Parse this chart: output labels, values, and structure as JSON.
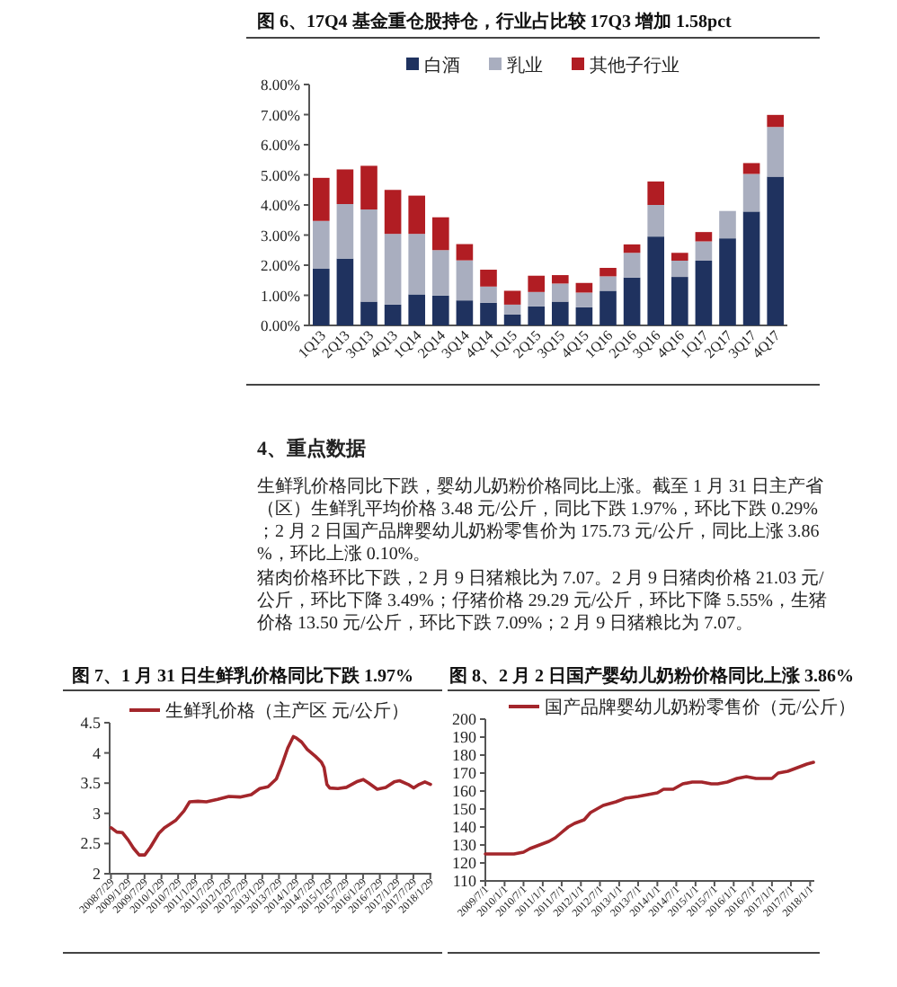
{
  "chart_data": [
    {
      "type": "bar",
      "stacked": true,
      "title": "图 6、17Q4 基金重仓股持仓，行业占比较 17Q3 增加 1.58pct",
      "legend": "top",
      "categories": [
        "1Q13",
        "2Q13",
        "3Q13",
        "4Q13",
        "1Q14",
        "2Q14",
        "3Q14",
        "4Q14",
        "1Q15",
        "2Q15",
        "3Q15",
        "4Q15",
        "1Q16",
        "2Q16",
        "3Q16",
        "4Q16",
        "1Q17",
        "2Q17",
        "3Q17",
        "4Q17"
      ],
      "series": [
        {
          "name": "白酒",
          "color": "#1f325f",
          "values": [
            1.88,
            2.22,
            0.79,
            0.69,
            1.03,
            0.99,
            0.83,
            0.75,
            0.36,
            0.63,
            0.79,
            0.6,
            1.15,
            1.59,
            2.95,
            1.61,
            2.15,
            2.89,
            3.78,
            4.94
          ]
        },
        {
          "name": "乳业",
          "color": "#a9aebf",
          "values": [
            1.59,
            1.81,
            3.06,
            2.35,
            2.01,
            1.51,
            1.33,
            0.54,
            0.33,
            0.48,
            0.6,
            0.49,
            0.48,
            0.82,
            1.05,
            0.54,
            0.64,
            0.91,
            1.25,
            1.65
          ]
        },
        {
          "name": "其他子行业",
          "color": "#b11d23",
          "values": [
            1.43,
            1.15,
            1.45,
            1.46,
            1.27,
            1.09,
            0.54,
            0.56,
            0.46,
            0.54,
            0.28,
            0.32,
            0.28,
            0.28,
            0.78,
            0.26,
            0.31,
            null,
            0.36,
            0.4
          ]
        }
      ],
      "ylim": [
        0,
        8
      ],
      "yticks": [
        {
          "value": 0,
          "label": "0.00%"
        },
        {
          "value": 1,
          "label": "1.00%"
        },
        {
          "value": 2,
          "label": "2.00%"
        },
        {
          "value": 3,
          "label": "3.00%"
        },
        {
          "value": 4,
          "label": "4.00%"
        },
        {
          "value": 5,
          "label": "5.00%"
        },
        {
          "value": 6,
          "label": "6.00%"
        },
        {
          "value": 7,
          "label": "7.00%"
        },
        {
          "value": 8,
          "label": "8.00%"
        }
      ],
      "annotations": [
        "4、重点数据",
        "生鲜乳价格同比下跌，婴幼儿奶粉价格同比上涨。截至 1 月 31 日主产省（区）生鲜乳平均价格 3.48 元/公斤，同比下跌 1.97%，环比下跌 0.29%；2 月 2 日国产品牌婴幼儿奶粉零售价为 175.73 元/公斤，同比上涨 3.86%，环比上涨 0.10%。",
        "猪肉价格环比下跌，2 月 9 日猪粮比为 7.07。2 月 9 日猪肉价格 21.03 元/公斤，环比下降 3.49%；仔猪价格 29.29 元/公斤，环比下降 5.55%，生猪价格 13.50 元/公斤，环比下跌 7.09%；2 月 9 日猪粮比为 7.07。"
      ]
    },
    {
      "type": "line",
      "title": "图 7、1 月 31 日生鲜乳价格同比下跌 1.97%",
      "legend": "top",
      "x": [
        "2008-08",
        "2008-10",
        "2008-12",
        "2009-02",
        "2009-04",
        "2009-06",
        "2009-08",
        "2009-10",
        "2010-01",
        "2010-03",
        "2010-07",
        "2010-10",
        "2010-12",
        "2011-03",
        "2011-06",
        "2011-10",
        "2012-02",
        "2012-06",
        "2012-10",
        "2013-01",
        "2013-04",
        "2013-07",
        "2013-09",
        "2013-11",
        "2014-01",
        "2014-02",
        "2014-04",
        "2014-06",
        "2014-09",
        "2014-11",
        "2014-12",
        "2015-01",
        "2015-02",
        "2015-05",
        "2015-08",
        "2015-12",
        "2016-02",
        "2016-04",
        "2016-07",
        "2016-10",
        "2017-01",
        "2017-03",
        "2017-06",
        "2017-08",
        "2017-10",
        "2017-12",
        "2018-01-31"
      ],
      "series": [
        {
          "name": "生鲜乳价格（主产区 元/公斤）",
          "color": "#a3262b",
          "values": [
            2.76,
            2.69,
            2.68,
            2.56,
            2.42,
            2.31,
            2.31,
            2.44,
            2.67,
            2.76,
            2.88,
            3.04,
            3.19,
            3.2,
            3.19,
            3.23,
            3.28,
            3.27,
            3.31,
            3.41,
            3.44,
            3.57,
            3.81,
            4.08,
            4.27,
            4.25,
            4.18,
            4.06,
            3.94,
            3.85,
            3.76,
            3.48,
            3.42,
            3.41,
            3.43,
            3.53,
            3.56,
            3.5,
            3.4,
            3.43,
            3.52,
            3.54,
            3.48,
            3.42,
            3.48,
            3.52,
            3.48
          ]
        }
      ],
      "ylim": [
        2,
        4.5
      ],
      "yticks": [
        2,
        2.5,
        3,
        3.5,
        4,
        4.5
      ],
      "xlim": [
        "2008-07-15",
        "2018-02-10"
      ],
      "xticks": [
        {
          "value": "2008-07-29",
          "label": "2008/7/29"
        },
        {
          "value": "2009-01-29",
          "label": "2009/1/29"
        },
        {
          "value": "2009-07-29",
          "label": "2009/7/29"
        },
        {
          "value": "2010-01-29",
          "label": "2010/1/29"
        },
        {
          "value": "2010-07-29",
          "label": "2010/7/29"
        },
        {
          "value": "2011-01-29",
          "label": "2011/1/29"
        },
        {
          "value": "2011-07-29",
          "label": "2011/7/29"
        },
        {
          "value": "2012-01-29",
          "label": "2012/1/29"
        },
        {
          "value": "2012-07-29",
          "label": "2012/7/29"
        },
        {
          "value": "2013-01-29",
          "label": "2013/1/29"
        },
        {
          "value": "2013-07-29",
          "label": "2013/7/29"
        },
        {
          "value": "2014-01-29",
          "label": "2014/1/29"
        },
        {
          "value": "2014-07-29",
          "label": "2014/7/29"
        },
        {
          "value": "2015-01-29",
          "label": "2015/1/29"
        },
        {
          "value": "2015-07-29",
          "label": "2015/7/29"
        },
        {
          "value": "2016-01-29",
          "label": "2016/1/29"
        },
        {
          "value": "2016-07-29",
          "label": "2016/7/29"
        },
        {
          "value": "2017-01-29",
          "label": "2017/1/29"
        },
        {
          "value": "2017-07-29",
          "label": "2017/7/29"
        },
        {
          "value": "2018-01-29",
          "label": "2018/1/29"
        }
      ]
    },
    {
      "type": "line",
      "title": "图 8、2 月 2 日国产婴幼儿奶粉价格同比上涨 3.86%",
      "legend": "top",
      "x": [
        "2009-07",
        "2009-12",
        "2010-04",
        "2010-07",
        "2010-09",
        "2010-12",
        "2011-03",
        "2011-05",
        "2011-07",
        "2011-09",
        "2011-11",
        "2012-02",
        "2012-04",
        "2012-06",
        "2012-08",
        "2012-12",
        "2013-03",
        "2013-07",
        "2013-10",
        "2014-01",
        "2014-03",
        "2014-06",
        "2014-09",
        "2014-12",
        "2015-03",
        "2015-06",
        "2015-08",
        "2015-11",
        "2016-02",
        "2016-05",
        "2016-08",
        "2017-01",
        "2017-03",
        "2017-06",
        "2017-09",
        "2017-12",
        "2018-02-02"
      ],
      "series": [
        {
          "name": "国产品牌婴幼儿奶粉零售价（元/公斤）",
          "color": "#a3262b",
          "values": [
            125,
            125,
            125,
            126,
            128,
            130,
            132,
            134,
            137,
            140,
            142,
            144,
            148,
            150,
            152,
            154,
            156,
            157,
            158,
            159,
            161,
            161,
            164,
            165,
            165,
            164,
            164,
            165,
            167,
            168,
            167,
            167,
            170,
            171,
            173,
            175,
            176
          ]
        }
      ],
      "ylim": [
        110,
        200
      ],
      "yticks": [
        110,
        120,
        130,
        140,
        150,
        160,
        170,
        180,
        190,
        200
      ],
      "xlim": [
        "2009-07-01",
        "2018-02-10"
      ],
      "xticks": [
        {
          "value": "2009-07-01",
          "label": "2009/7/1"
        },
        {
          "value": "2010-01-01",
          "label": "2010/1/1"
        },
        {
          "value": "2010-07-01",
          "label": "2010/7/1"
        },
        {
          "value": "2011-01-01",
          "label": "2011/1/1"
        },
        {
          "value": "2011-07-01",
          "label": "2011/7/1"
        },
        {
          "value": "2012-01-01",
          "label": "2012/1/1"
        },
        {
          "value": "2012-07-01",
          "label": "2012/7/1"
        },
        {
          "value": "2013-01-01",
          "label": "2013/1/1"
        },
        {
          "value": "2013-07-01",
          "label": "2013/7/1"
        },
        {
          "value": "2014-01-01",
          "label": "2014/1/1"
        },
        {
          "value": "2014-07-01",
          "label": "2014/7/1"
        },
        {
          "value": "2015-01-01",
          "label": "2015/1/1"
        },
        {
          "value": "2015-07-01",
          "label": "2015/7/1"
        },
        {
          "value": "2016-01-01",
          "label": "2016/1/1"
        },
        {
          "value": "2016-07-01",
          "label": "2016/7/1"
        },
        {
          "value": "2017-01-01",
          "label": "2017/1/1"
        },
        {
          "value": "2017-07-01",
          "label": "2017/7/1"
        },
        {
          "value": "2018-01-01",
          "label": "2018/1/1"
        }
      ]
    }
  ]
}
